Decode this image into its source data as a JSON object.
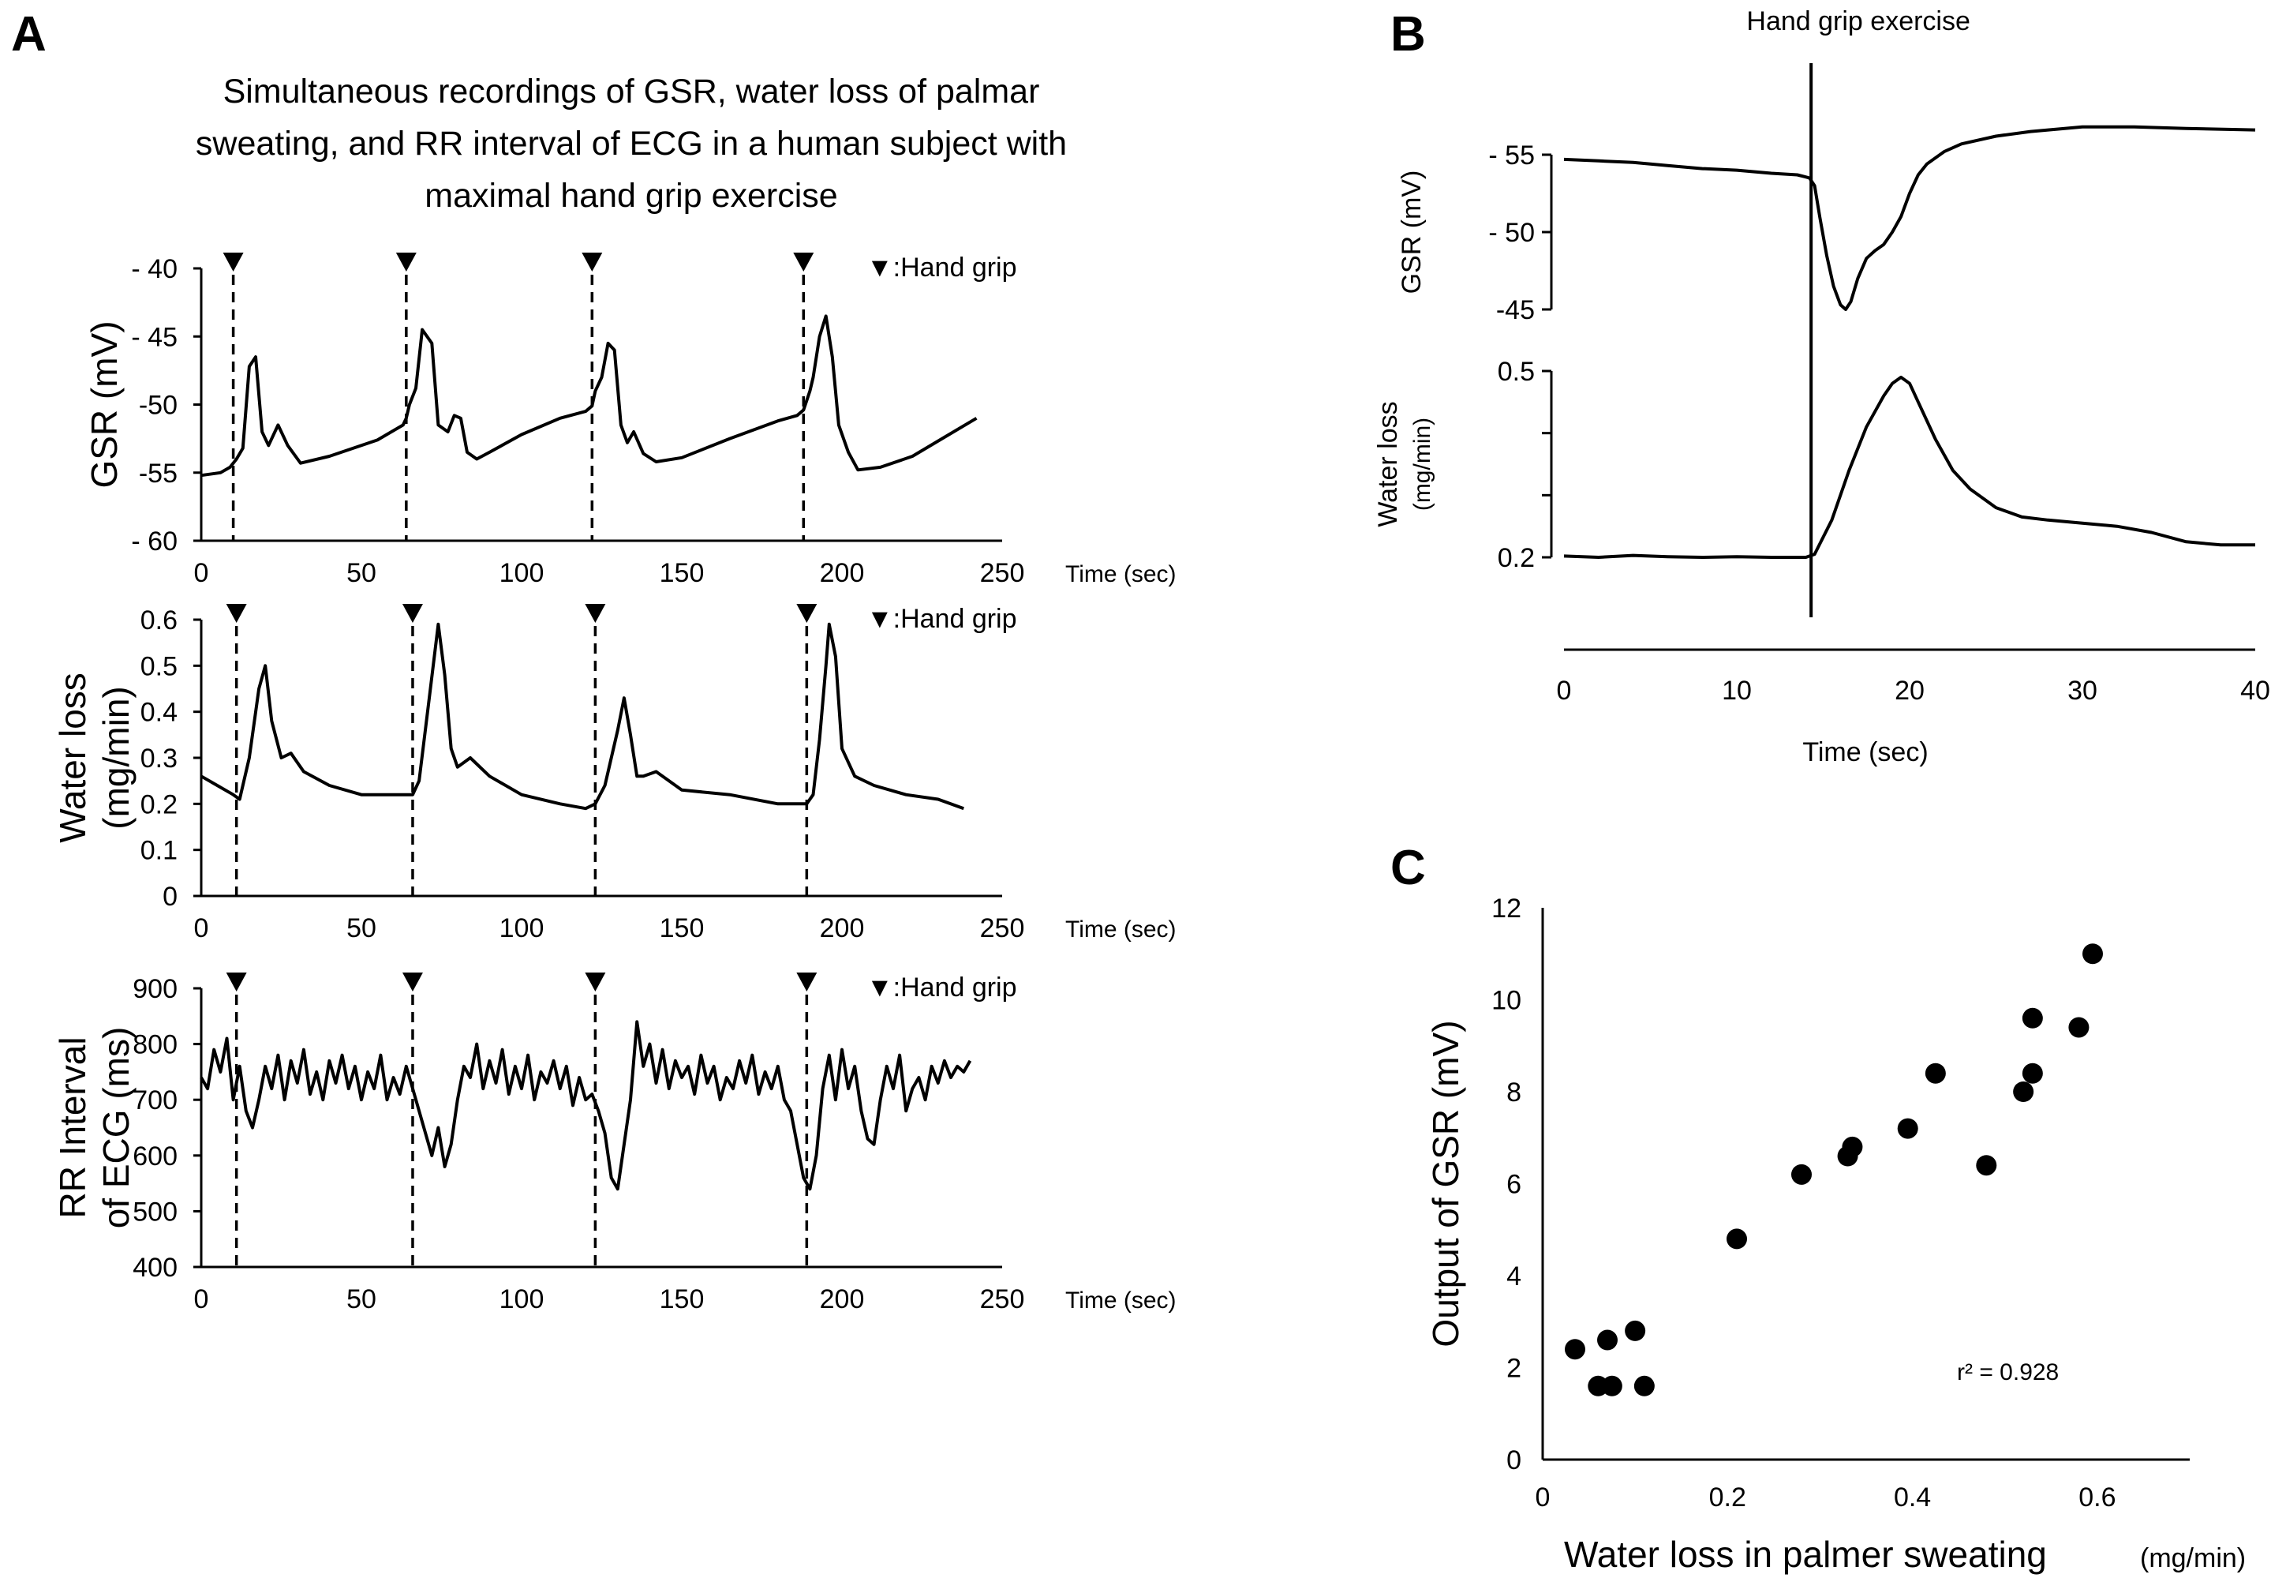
{
  "figure": {
    "panel_labels": {
      "a": "A",
      "b": "B",
      "c": "C"
    },
    "title_lines": [
      "Simultaneous recordings of GSR, water loss of palmar",
      "sweating, and RR interval of ECG in a human subject with",
      "maximal hand grip exercise"
    ],
    "hand_grip_legend": "▼:Hand grip",
    "time_axis_label": "Time (sec)"
  },
  "chart_data": [
    {
      "id": "A1",
      "type": "line",
      "ylabel": "GSR (mV)",
      "xlabel": "Time (sec)",
      "xlim": [
        0,
        250
      ],
      "ylim": [
        40,
        60
      ],
      "y_inverted": true,
      "xticks": [
        0,
        50,
        100,
        150,
        200,
        250
      ],
      "yticks": [
        60,
        55,
        50,
        45,
        40
      ],
      "ytick_labels": [
        "- 60",
        "-55",
        "-50",
        "- 45",
        "- 40"
      ],
      "hand_grip_times": [
        10,
        64,
        122,
        188
      ],
      "series": [
        {
          "name": "GSR",
          "x": [
            0,
            6,
            9,
            11,
            13,
            15,
            17,
            19,
            21,
            24,
            27,
            31,
            40,
            55,
            63,
            64,
            65,
            67,
            69,
            72,
            74,
            77,
            79,
            81,
            83,
            86,
            90,
            100,
            112,
            120,
            122,
            123,
            125,
            127,
            129,
            131,
            133,
            135,
            138,
            142,
            150,
            165,
            180,
            186,
            188,
            190,
            191,
            193,
            195,
            197,
            199,
            202,
            205,
            212,
            222,
            232,
            242
          ],
          "y": [
            55.2,
            55.0,
            54.6,
            54.0,
            53.2,
            47.2,
            46.5,
            52.0,
            53.0,
            51.5,
            53.0,
            54.3,
            53.8,
            52.6,
            51.5,
            51.0,
            50.0,
            48.8,
            44.5,
            45.5,
            51.5,
            52.0,
            50.8,
            51.0,
            53.5,
            54.0,
            53.5,
            52.2,
            51.0,
            50.5,
            50.1,
            49.0,
            48.0,
            45.5,
            46.0,
            51.5,
            52.8,
            52.0,
            53.6,
            54.2,
            53.9,
            52.5,
            51.2,
            50.8,
            50.4,
            49.0,
            48.0,
            45.0,
            43.5,
            46.5,
            51.5,
            53.5,
            54.8,
            54.6,
            53.8,
            52.4,
            51.0
          ]
        }
      ]
    },
    {
      "id": "A2",
      "type": "line",
      "ylabel_lines": [
        "Water loss",
        "(mg/min)"
      ],
      "xlabel": "Time (sec)",
      "xlim": [
        0,
        250
      ],
      "ylim": [
        0,
        0.6
      ],
      "xticks": [
        0,
        50,
        100,
        150,
        200,
        250
      ],
      "yticks": [
        0,
        0.1,
        0.2,
        0.3,
        0.4,
        0.5,
        0.6
      ],
      "hand_grip_times": [
        11,
        66,
        123,
        189
      ],
      "series": [
        {
          "name": "Water loss",
          "x": [
            0,
            5,
            10,
            12,
            15,
            18,
            20,
            22,
            25,
            28,
            32,
            40,
            50,
            60,
            66,
            68,
            71,
            74,
            76,
            78,
            80,
            84,
            90,
            100,
            112,
            120,
            123,
            126,
            130,
            132,
            134,
            136,
            138,
            142,
            150,
            165,
            180,
            189,
            191,
            193,
            195,
            196,
            198,
            200,
            204,
            210,
            220,
            230,
            238
          ],
          "y": [
            0.26,
            0.24,
            0.22,
            0.21,
            0.3,
            0.45,
            0.5,
            0.38,
            0.3,
            0.31,
            0.27,
            0.24,
            0.22,
            0.22,
            0.22,
            0.25,
            0.42,
            0.59,
            0.48,
            0.32,
            0.28,
            0.3,
            0.26,
            0.22,
            0.2,
            0.19,
            0.2,
            0.24,
            0.36,
            0.43,
            0.35,
            0.26,
            0.26,
            0.27,
            0.23,
            0.22,
            0.2,
            0.2,
            0.22,
            0.34,
            0.5,
            0.59,
            0.52,
            0.32,
            0.26,
            0.24,
            0.22,
            0.21,
            0.19
          ]
        }
      ]
    },
    {
      "id": "A3",
      "type": "line",
      "ylabel_lines": [
        "RR Interval",
        "of ECG (ms)"
      ],
      "xlabel": "Time (sec)",
      "xlim": [
        0,
        250
      ],
      "ylim": [
        400,
        900
      ],
      "xticks": [
        0,
        50,
        100,
        150,
        200,
        250
      ],
      "yticks": [
        400,
        500,
        600,
        700,
        800,
        900
      ],
      "hand_grip_times": [
        11,
        66,
        123,
        189
      ],
      "series": [
        {
          "name": "RR interval",
          "x": [
            0,
            2,
            4,
            6,
            8,
            10,
            12,
            14,
            16,
            18,
            20,
            22,
            24,
            26,
            28,
            30,
            32,
            34,
            36,
            38,
            40,
            42,
            44,
            46,
            48,
            50,
            52,
            54,
            56,
            58,
            60,
            62,
            64,
            66,
            68,
            70,
            72,
            74,
            76,
            78,
            80,
            82,
            84,
            86,
            88,
            90,
            92,
            94,
            96,
            98,
            100,
            102,
            104,
            106,
            108,
            110,
            112,
            114,
            116,
            118,
            120,
            122,
            124,
            126,
            128,
            130,
            132,
            134,
            136,
            138,
            140,
            142,
            144,
            146,
            148,
            150,
            152,
            154,
            156,
            158,
            160,
            162,
            164,
            166,
            168,
            170,
            172,
            174,
            176,
            178,
            180,
            182,
            184,
            186,
            188,
            190,
            192,
            194,
            196,
            198,
            200,
            202,
            204,
            206,
            208,
            210,
            212,
            214,
            216,
            218,
            220,
            222,
            224,
            226,
            228,
            230,
            232,
            234,
            236,
            238,
            240
          ],
          "y": [
            740,
            720,
            790,
            750,
            810,
            700,
            760,
            680,
            650,
            700,
            760,
            720,
            780,
            700,
            770,
            730,
            790,
            710,
            750,
            700,
            770,
            730,
            780,
            720,
            760,
            700,
            750,
            720,
            780,
            700,
            740,
            710,
            760,
            720,
            680,
            640,
            600,
            650,
            580,
            620,
            700,
            760,
            740,
            800,
            720,
            770,
            730,
            790,
            710,
            760,
            720,
            780,
            700,
            750,
            730,
            770,
            720,
            760,
            690,
            740,
            700,
            710,
            680,
            640,
            560,
            540,
            620,
            700,
            840,
            760,
            800,
            730,
            790,
            720,
            770,
            740,
            760,
            710,
            780,
            730,
            760,
            700,
            740,
            720,
            770,
            730,
            780,
            710,
            750,
            720,
            760,
            700,
            680,
            620,
            560,
            540,
            600,
            720,
            780,
            700,
            790,
            720,
            760,
            680,
            630,
            620,
            700,
            760,
            720,
            780,
            680,
            720,
            740,
            700,
            760,
            730,
            770,
            740,
            760,
            750,
            770
          ]
        }
      ]
    },
    {
      "id": "B",
      "type": "line",
      "annotation": "Hand grip  exercise",
      "xlabel": "Time (sec)",
      "xlim": [
        0,
        40
      ],
      "xticks": [
        0,
        10,
        20,
        30,
        40
      ],
      "event_time": 14.3,
      "subplots": [
        {
          "ylabel": "GSR (mV)",
          "ylim": [
            45,
            55
          ],
          "y_inverted": true,
          "yticks": [
            55,
            50,
            45
          ],
          "ytick_labels": [
            "- 55",
            "- 50",
            "-45"
          ],
          "x": [
            0,
            2,
            4,
            6,
            8,
            10,
            12,
            13.5,
            14.2,
            14.5,
            14.8,
            15.2,
            15.6,
            16.0,
            16.3,
            16.6,
            17.0,
            17.5,
            18.0,
            18.5,
            19.0,
            19.5,
            20.0,
            20.5,
            21.0,
            22.0,
            23.0,
            25.0,
            27.0,
            30.0,
            33.0,
            36.0,
            40.0
          ],
          "y": [
            54.7,
            54.6,
            54.5,
            54.3,
            54.1,
            54.0,
            53.8,
            53.7,
            53.5,
            53.0,
            51.0,
            48.5,
            46.5,
            45.3,
            45.0,
            45.5,
            47.0,
            48.3,
            48.8,
            49.2,
            50.0,
            51.0,
            52.5,
            53.7,
            54.4,
            55.2,
            55.7,
            56.2,
            56.5,
            56.8,
            56.8,
            56.7,
            56.6
          ]
        },
        {
          "ylabel_lines": [
            "Water loss",
            "(mg/min)"
          ],
          "ylim": [
            0.2,
            0.5
          ],
          "yticks": [
            0.2,
            0.3,
            0.4,
            0.5
          ],
          "ytick_labels": [
            "0.2",
            "",
            "",
            "0.5"
          ],
          "x": [
            0,
            2,
            4,
            6,
            8,
            10,
            12,
            14,
            14.5,
            15.5,
            16.5,
            17.5,
            18.5,
            19.0,
            19.5,
            20.0,
            20.5,
            21.5,
            22.5,
            23.5,
            25.0,
            26.5,
            28.0,
            30.0,
            32.0,
            34.0,
            36.0,
            38.0,
            40.0
          ],
          "y": [
            0.202,
            0.2,
            0.203,
            0.201,
            0.2,
            0.201,
            0.2,
            0.2,
            0.205,
            0.26,
            0.34,
            0.41,
            0.46,
            0.48,
            0.49,
            0.48,
            0.45,
            0.39,
            0.34,
            0.31,
            0.28,
            0.265,
            0.26,
            0.255,
            0.25,
            0.24,
            0.225,
            0.22,
            0.22
          ]
        }
      ]
    },
    {
      "id": "C",
      "type": "scatter",
      "xlabel": "Water loss in palmer sweating",
      "xlabel_unit": "(mg/min)",
      "ylabel": "Output of GSR (mV)",
      "xlim": [
        0,
        0.7
      ],
      "ylim": [
        0,
        12
      ],
      "xticks": [
        0,
        0.2,
        0.4,
        0.6
      ],
      "yticks": [
        0,
        2,
        4,
        6,
        8,
        10,
        12
      ],
      "annotation": "r² = 0.928",
      "x": [
        0.035,
        0.06,
        0.07,
        0.075,
        0.1,
        0.11,
        0.21,
        0.28,
        0.33,
        0.335,
        0.395,
        0.425,
        0.48,
        0.52,
        0.53,
        0.53,
        0.58,
        0.595
      ],
      "y": [
        2.4,
        1.6,
        2.6,
        1.6,
        2.8,
        1.6,
        4.8,
        6.2,
        6.6,
        6.8,
        7.2,
        8.4,
        6.4,
        8.0,
        8.4,
        9.6,
        9.4,
        11.0
      ]
    }
  ]
}
